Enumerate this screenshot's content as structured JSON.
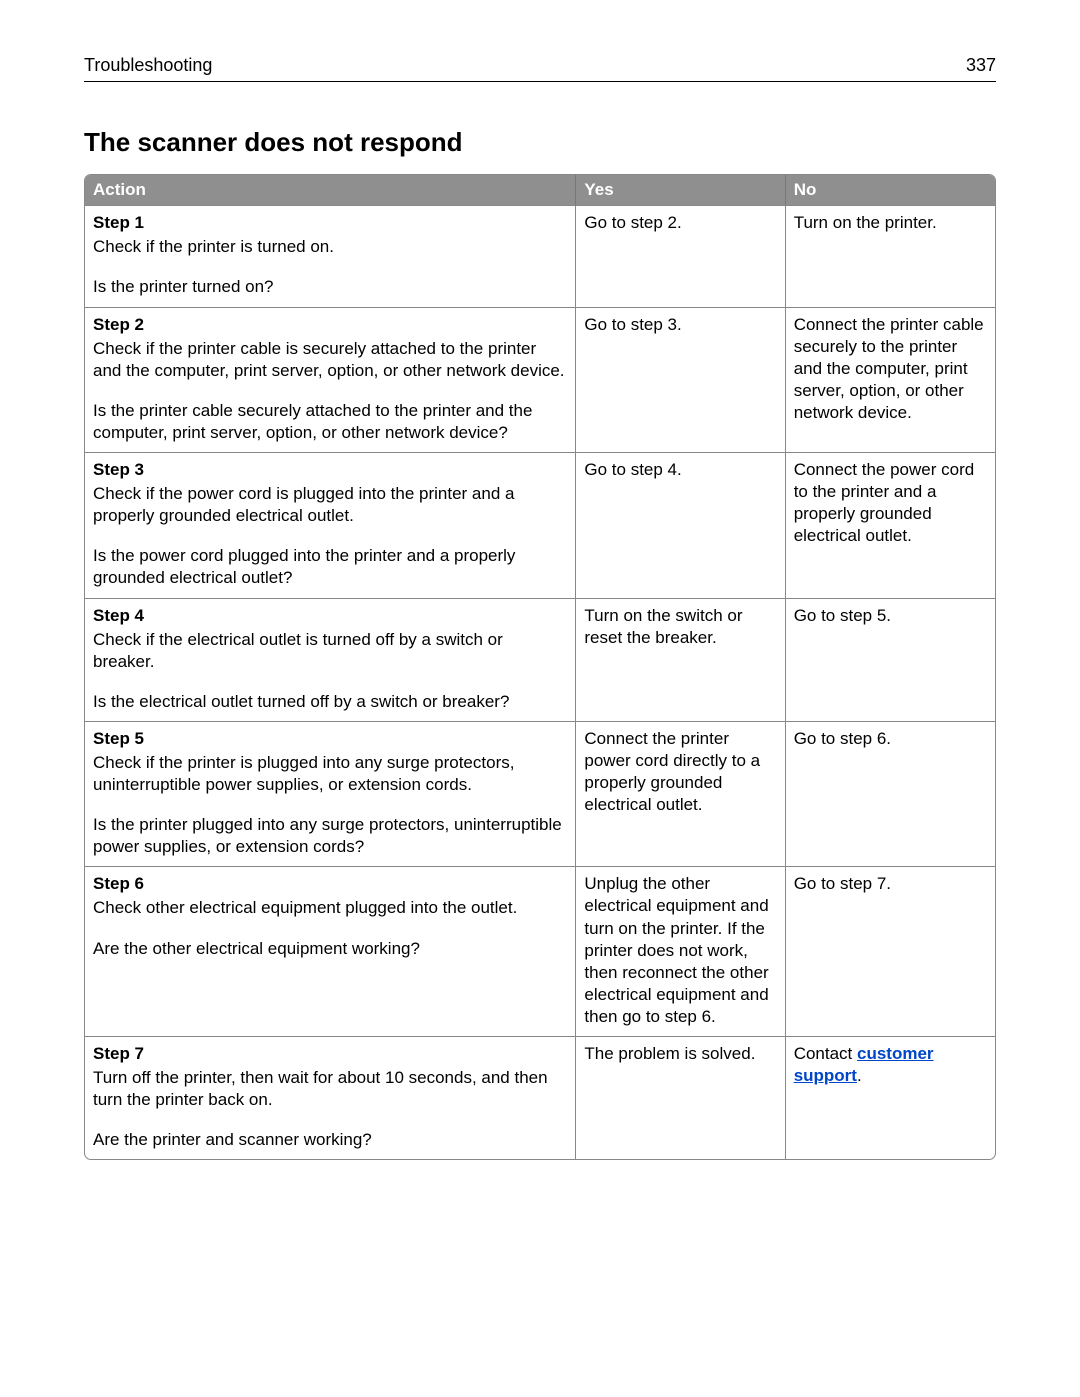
{
  "header": {
    "section": "Troubleshooting",
    "page_number": "337"
  },
  "title": "The scanner does not respond",
  "columns": {
    "action": "Action",
    "yes": "Yes",
    "no": "No"
  },
  "steps": [
    {
      "label": "Step 1",
      "body": "Check if the printer is turned on.",
      "question": "Is the printer turned on?",
      "yes": "Go to step 2.",
      "no": "Turn on the printer."
    },
    {
      "label": "Step 2",
      "body": "Check if the printer cable is securely attached to the printer and the computer, print server, option, or other network device.",
      "question": "Is the printer cable securely attached to the printer and the computer, print server, option, or other network device?",
      "yes": "Go to step 3.",
      "no": "Connect the printer cable securely to the printer and the computer, print server, option, or other network device."
    },
    {
      "label": "Step 3",
      "body": "Check if the power cord is plugged into the printer and a properly grounded electrical outlet.",
      "question": "Is the power cord plugged into the printer and a properly grounded electrical outlet?",
      "yes": "Go to step 4.",
      "no": "Connect the power cord to the printer and a properly grounded electrical outlet."
    },
    {
      "label": "Step 4",
      "body": "Check if the electrical outlet is turned off by a switch or breaker.",
      "question": "Is the electrical outlet turned off by a switch or breaker?",
      "yes": "Turn on the switch or reset the breaker.",
      "no": "Go to step 5."
    },
    {
      "label": "Step 5",
      "body": "Check if the printer is plugged into any surge protectors, uninterruptible power supplies, or extension cords.",
      "question": "Is the printer plugged into any surge protectors, uninterruptible power supplies, or extension cords?",
      "yes": "Connect the printer power cord directly to a properly grounded electrical outlet.",
      "no": "Go to step 6."
    },
    {
      "label": "Step 6",
      "body": "Check other electrical equipment plugged into the outlet.",
      "question": "Are the other electrical equipment working?",
      "yes": "Unplug the other electrical equipment and turn on the printer. If the printer does not work, then reconnect the other electrical equipment and then go to step 6.",
      "no": "Go to step 7."
    },
    {
      "label": "Step 7",
      "body": "Turn off the printer, then wait for about 10 seconds, and then turn the printer back on.",
      "question": "Are the printer and scanner working?",
      "yes": "The problem is solved.",
      "no_prefix": "Contact ",
      "no_link": "customer support",
      "no_suffix": "."
    }
  ]
}
